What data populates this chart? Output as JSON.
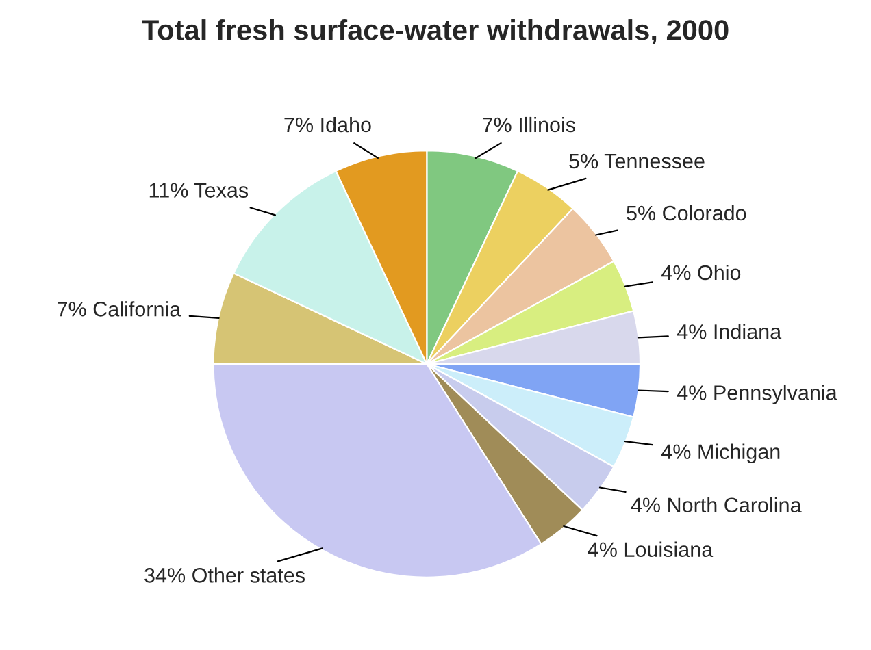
{
  "chart_data": {
    "type": "pie",
    "title": "Total fresh surface-water withdrawals, 2000",
    "categories": [
      "Illinois",
      "Tennessee",
      "Colorado",
      "Ohio",
      "Indiana",
      "Pennsylvania",
      "Michigan",
      "North Carolina",
      "Louisiana",
      "Other states",
      "California",
      "Texas",
      "Idaho"
    ],
    "values": [
      7,
      5,
      5,
      4,
      4,
      4,
      4,
      4,
      4,
      34,
      7,
      11,
      7
    ],
    "value_labels": [
      "7%",
      "5%",
      "5%",
      "4%",
      "4%",
      "4%",
      "4%",
      "4%",
      "4%",
      "34%",
      "7%",
      "11%",
      "7%"
    ],
    "colors": [
      "#80c880",
      "#ecd060",
      "#ecc4a0",
      "#d8ee80",
      "#d8d8ec",
      "#80a4f4",
      "#cceefa",
      "#c8cced",
      "#a08c58",
      "#c8c8f2",
      "#d6c474",
      "#c8f2ea",
      "#e29a20"
    ],
    "legend": false
  }
}
